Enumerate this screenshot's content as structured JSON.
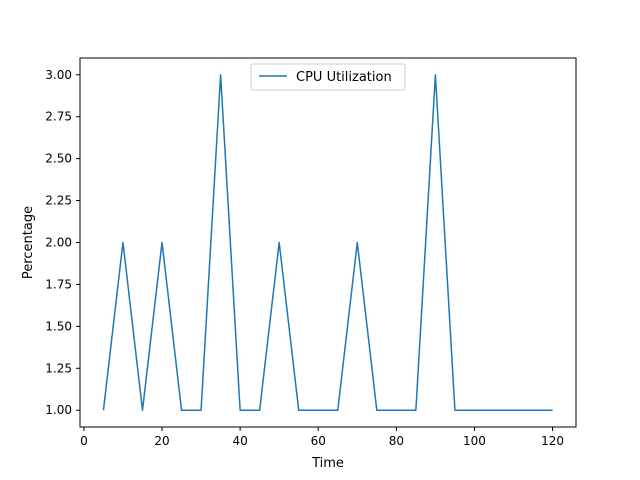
{
  "chart_data": {
    "type": "line",
    "title": "",
    "xlabel": "Time",
    "ylabel": "Percentage",
    "xlim": [
      -1,
      126
    ],
    "ylim": [
      0.9,
      3.1
    ],
    "xticks": [
      0,
      20,
      40,
      60,
      80,
      100,
      120
    ],
    "xtick_labels": [
      "0",
      "20",
      "40",
      "60",
      "80",
      "100",
      "120"
    ],
    "yticks": [
      1.0,
      1.25,
      1.5,
      1.75,
      2.0,
      2.25,
      2.5,
      2.75,
      3.0
    ],
    "ytick_labels": [
      "1.00",
      "1.25",
      "1.50",
      "1.75",
      "2.00",
      "2.25",
      "2.50",
      "2.75",
      "3.00"
    ],
    "grid": false,
    "legend_position": "top-center",
    "series": [
      {
        "name": "CPU Utilization",
        "color": "#1f77b4",
        "x": [
          5,
          10,
          15,
          20,
          25,
          30,
          35,
          40,
          45,
          50,
          55,
          60,
          65,
          70,
          75,
          80,
          85,
          90,
          95,
          100,
          105,
          110,
          115,
          120
        ],
        "y": [
          1,
          2,
          1,
          2,
          1,
          1,
          3,
          1,
          1,
          2,
          1,
          1,
          1,
          2,
          1,
          1,
          1,
          3,
          1,
          1,
          1,
          1,
          1,
          1
        ]
      }
    ]
  }
}
